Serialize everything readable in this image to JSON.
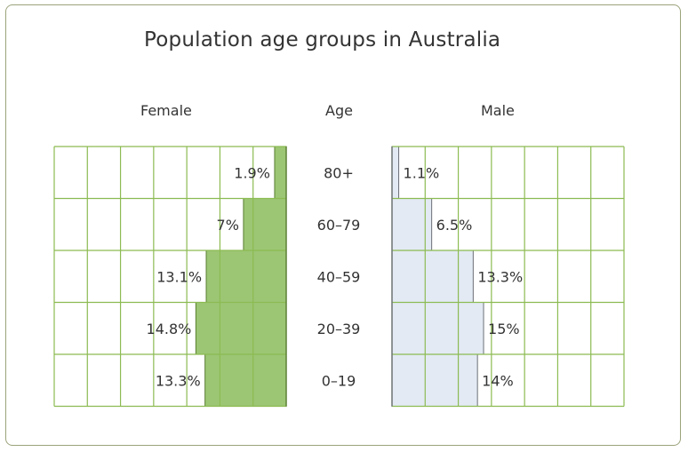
{
  "chart_data": {
    "type": "bar",
    "title": "Population age groups in Australia",
    "female_label": "Female",
    "age_label": "Age",
    "male_label": "Male",
    "categories": [
      "80+",
      "60–79",
      "40–59",
      "20–39",
      "0–19"
    ],
    "series": [
      {
        "name": "Female",
        "values": [
          1.9,
          7,
          13.1,
          14.8,
          13.3
        ],
        "labels": [
          "1.9%",
          "7%",
          "13.1%",
          "14.8%",
          "13.3%"
        ]
      },
      {
        "name": "Male",
        "values": [
          1.1,
          6.5,
          13.3,
          15,
          14
        ],
        "labels": [
          "1.1%",
          "6.5%",
          "13.3%",
          "15%",
          "14%"
        ]
      }
    ],
    "xlim": [
      0,
      38
    ],
    "grid": true,
    "colors": {
      "female_fill": "#9cc674",
      "female_edge": "#5b7d33",
      "male_fill": "#e3eaf4",
      "male_edge": "#6b6f76",
      "grid": "#8cbb52"
    }
  }
}
